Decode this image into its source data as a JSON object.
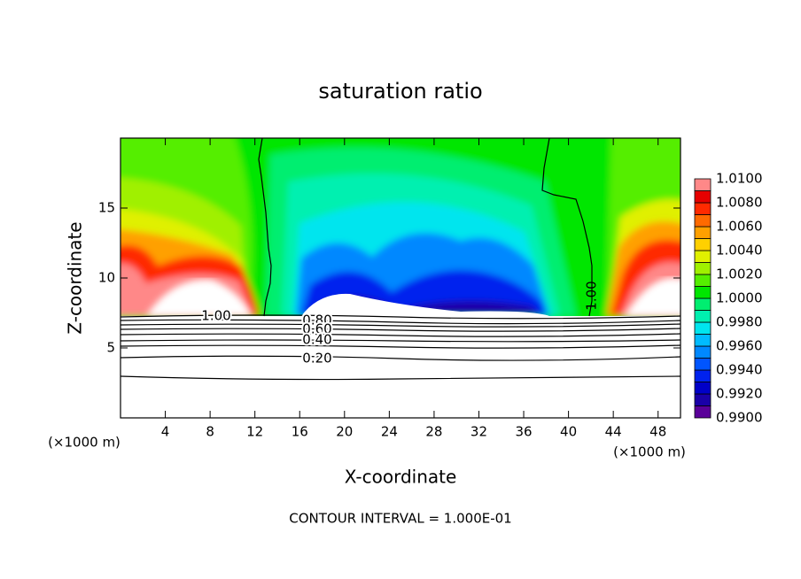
{
  "chart_data": {
    "type": "contour",
    "title": "saturation ratio",
    "xlabel": "X-coordinate",
    "ylabel": "Z-coordinate",
    "x_unit_left": "(×1000 m)",
    "x_unit_right": "(×1000 m)",
    "footer": "CONTOUR INTERVAL = 1.000E-01",
    "xlim": [
      0,
      50
    ],
    "xticks": [
      4,
      8,
      12,
      16,
      20,
      24,
      28,
      32,
      36,
      40,
      44,
      48
    ],
    "ylim": [
      0,
      20
    ],
    "yticks": [
      5,
      10,
      15
    ],
    "levels": [
      0.99,
      0.991,
      0.992,
      0.993,
      0.994,
      0.995,
      0.996,
      0.997,
      0.998,
      0.999,
      1.0,
      1.001,
      1.002,
      1.003,
      1.004,
      1.005,
      1.006,
      1.007,
      1.008,
      1.009,
      1.01
    ],
    "colors": [
      "#5a0099",
      "#1a00a8",
      "#0000c8",
      "#0022ee",
      "#0055ff",
      "#0088ff",
      "#00bbff",
      "#00e5ee",
      "#00f0b0",
      "#00ee70",
      "#00e600",
      "#55ee00",
      "#a0f000",
      "#e0f000",
      "#ffd000",
      "#ffa000",
      "#ff6a00",
      "#ff2a00",
      "#e60000",
      "#ff8888"
    ],
    "colorbar_ticks": [
      {
        "value": 1.01,
        "label": "1.0100"
      },
      {
        "value": 1.008,
        "label": "1.0080"
      },
      {
        "value": 1.006,
        "label": "1.0060"
      },
      {
        "value": 1.004,
        "label": "1.0040"
      },
      {
        "value": 1.002,
        "label": "1.0020"
      },
      {
        "value": 1.0,
        "label": "1.0000"
      },
      {
        "value": 0.998,
        "label": "0.9980"
      },
      {
        "value": 0.996,
        "label": "0.9960"
      },
      {
        "value": 0.994,
        "label": "0.9940"
      },
      {
        "value": 0.992,
        "label": "0.9920"
      },
      {
        "value": 0.99,
        "label": "0.9900"
      }
    ],
    "contour_labels": [
      "1.00",
      "0.80",
      "0.60",
      "0.40",
      "0.20",
      "1.00"
    ]
  }
}
